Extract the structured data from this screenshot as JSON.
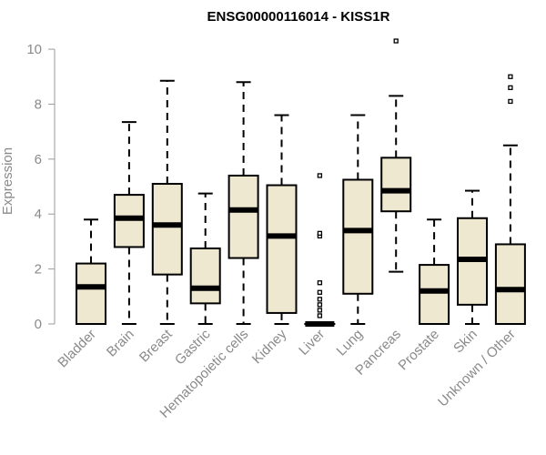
{
  "chart_data": {
    "type": "box",
    "title": "ENSG00000116014 - KISS1R",
    "ylabel": "Expression",
    "xlabel": "",
    "ylim": [
      0,
      10.4
    ],
    "yticks": [
      0,
      2,
      4,
      6,
      8,
      10
    ],
    "categories": [
      "Bladder",
      "Brain",
      "Breast",
      "Gastric",
      "Hematopoietic cells",
      "Kidney",
      "Liver",
      "Lung",
      "Pancreas",
      "Prostate",
      "Skin",
      "Unknown / Other"
    ],
    "boxes": [
      {
        "whisker_low": 0,
        "q1": 0,
        "median": 1.35,
        "q3": 2.2,
        "whisker_high": 3.8,
        "outliers": []
      },
      {
        "whisker_low": 0,
        "q1": 2.8,
        "median": 3.85,
        "q3": 4.7,
        "whisker_high": 7.35,
        "outliers": []
      },
      {
        "whisker_low": 0,
        "q1": 1.8,
        "median": 3.6,
        "q3": 5.1,
        "whisker_high": 8.85,
        "outliers": []
      },
      {
        "whisker_low": 0,
        "q1": 0.75,
        "median": 1.3,
        "q3": 2.75,
        "whisker_high": 4.75,
        "outliers": []
      },
      {
        "whisker_low": 0,
        "q1": 2.4,
        "median": 4.15,
        "q3": 5.4,
        "whisker_high": 8.8,
        "outliers": []
      },
      {
        "whisker_low": 0,
        "q1": 0.4,
        "median": 3.2,
        "q3": 5.05,
        "whisker_high": 7.6,
        "outliers": []
      },
      {
        "whisker_low": 0,
        "q1": 0,
        "median": 0,
        "q3": 0,
        "whisker_high": 0,
        "outliers": [
          0.3,
          0.5,
          0.7,
          0.9,
          1.15,
          1.5,
          3.2,
          3.3,
          5.4
        ]
      },
      {
        "whisker_low": 0,
        "q1": 1.1,
        "median": 3.4,
        "q3": 5.25,
        "whisker_high": 7.6,
        "outliers": []
      },
      {
        "whisker_low": 1.9,
        "q1": 4.1,
        "median": 4.85,
        "q3": 6.05,
        "whisker_high": 8.3,
        "outliers": [
          10.3
        ]
      },
      {
        "whisker_low": 0,
        "q1": 0,
        "median": 1.2,
        "q3": 2.15,
        "whisker_high": 3.8,
        "outliers": []
      },
      {
        "whisker_low": 0,
        "q1": 0.7,
        "median": 2.35,
        "q3": 3.85,
        "whisker_high": 4.85,
        "outliers": []
      },
      {
        "whisker_low": 0,
        "q1": 0,
        "median": 1.25,
        "q3": 2.9,
        "whisker_high": 6.5,
        "outliers": [
          8.1,
          8.6,
          9.0
        ]
      }
    ],
    "box_fill": "#efe8d0",
    "grid": false,
    "legend": "none"
  }
}
